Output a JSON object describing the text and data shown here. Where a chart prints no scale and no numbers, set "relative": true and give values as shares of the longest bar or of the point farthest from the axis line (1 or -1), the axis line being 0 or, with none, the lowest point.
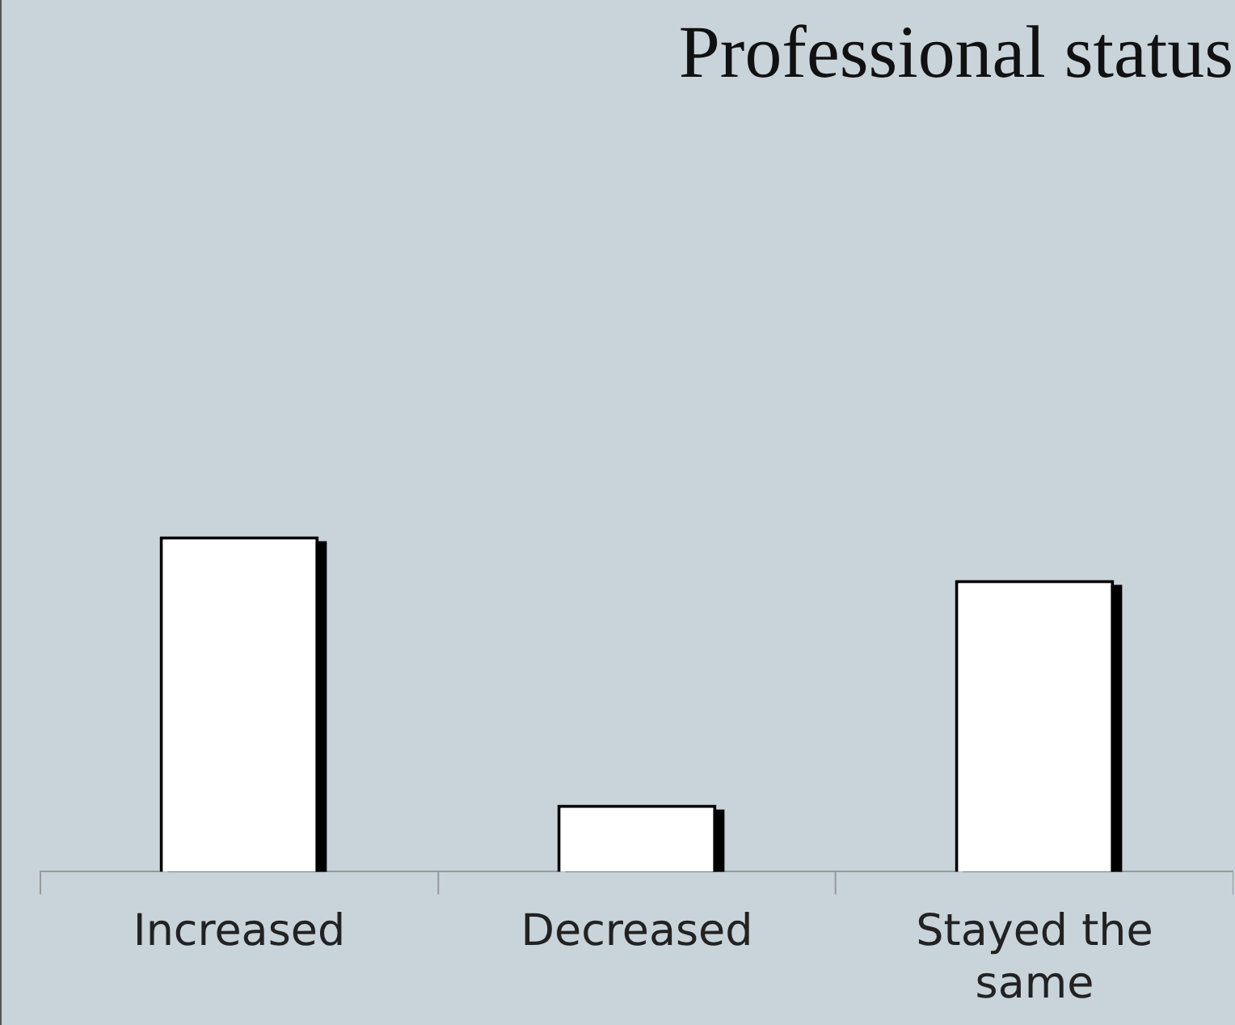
{
  "chart_data": {
    "type": "bar",
    "title": "Professional status",
    "categories": [
      "Increased",
      "Decreased",
      "Stayed the same"
    ],
    "values": [
      1,
      0.2,
      0.87
    ],
    "color": "#ffffff",
    "relative": true
  }
}
